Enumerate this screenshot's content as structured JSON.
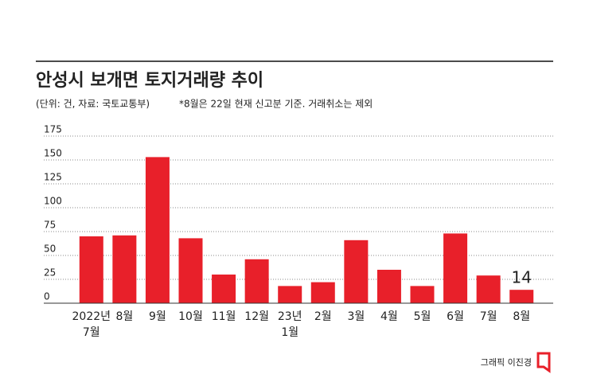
{
  "chart_data": {
    "type": "bar",
    "title": "안성시 보개면 토지거래량 추이",
    "subtitle": "(단위: 건, 자료: 국토교통부)",
    "note": "*8월은 22일 현재 신고분 기준. 거래취소는 제외",
    "credit": "그래픽 이진경",
    "categories": [
      [
        "2022년",
        "7월"
      ],
      [
        "8월"
      ],
      [
        "9월"
      ],
      [
        "10월"
      ],
      [
        "11월"
      ],
      [
        "12월"
      ],
      [
        "23년",
        "1월"
      ],
      [
        "2월"
      ],
      [
        "3월"
      ],
      [
        "4월"
      ],
      [
        "5월"
      ],
      [
        "6월"
      ],
      [
        "7월"
      ],
      [
        "8월"
      ]
    ],
    "values": [
      70,
      71,
      153,
      68,
      30,
      46,
      18,
      22,
      66,
      35,
      18,
      73,
      29,
      14
    ],
    "value_labels": [
      null,
      null,
      null,
      null,
      null,
      null,
      null,
      null,
      null,
      null,
      null,
      null,
      null,
      "14"
    ],
    "color": "#e8202a",
    "ylim": [
      0,
      175
    ],
    "yticks": [
      0,
      25,
      50,
      75,
      100,
      125,
      150,
      175
    ],
    "grid": true
  }
}
